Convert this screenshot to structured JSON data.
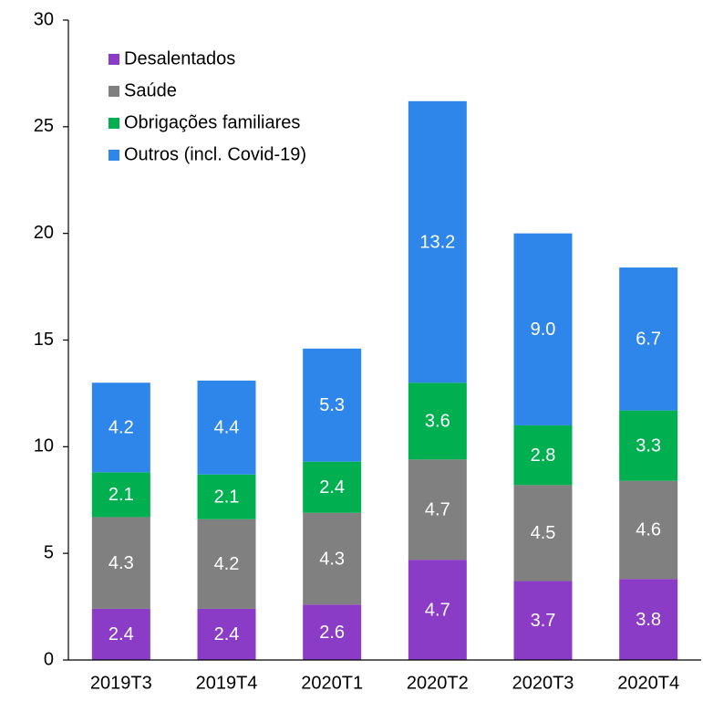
{
  "chart_data": {
    "type": "stacked_bar",
    "categories": [
      "2019T3",
      "2019T4",
      "2020T1",
      "2020T2",
      "2020T3",
      "2020T4"
    ],
    "series": [
      {
        "name": "Desalentados",
        "color": "#8b3cc6",
        "values": [
          2.4,
          2.4,
          2.6,
          4.7,
          3.7,
          3.8
        ],
        "value_labels": [
          "2.4",
          "2.4",
          "2.6",
          "4.7",
          "3.7",
          "3.8"
        ]
      },
      {
        "name": "Saúde",
        "color": "#808080",
        "values": [
          4.3,
          4.2,
          4.3,
          4.7,
          4.5,
          4.6
        ],
        "value_labels": [
          "4.3",
          "4.2",
          "4.3",
          "4.7",
          "4.5",
          "4.6"
        ]
      },
      {
        "name": "Obrigações familiares",
        "color": "#00b050",
        "values": [
          2.1,
          2.1,
          2.4,
          3.6,
          2.8,
          3.3
        ],
        "value_labels": [
          "2.1",
          "2.1",
          "2.4",
          "3.6",
          "2.8",
          "3.3"
        ]
      },
      {
        "name": "Outros (incl. Covid-19)",
        "color": "#2f86ea",
        "values": [
          4.2,
          4.4,
          5.3,
          13.2,
          9.0,
          6.7
        ],
        "value_labels": [
          "4.2",
          "4.4",
          "5.3",
          "13.2",
          "9.0",
          "6.7"
        ]
      }
    ],
    "ylim": [
      0,
      30
    ],
    "yticks": [
      0,
      5,
      10,
      15,
      20,
      25,
      30
    ],
    "grid": false,
    "legend": "top-left"
  }
}
